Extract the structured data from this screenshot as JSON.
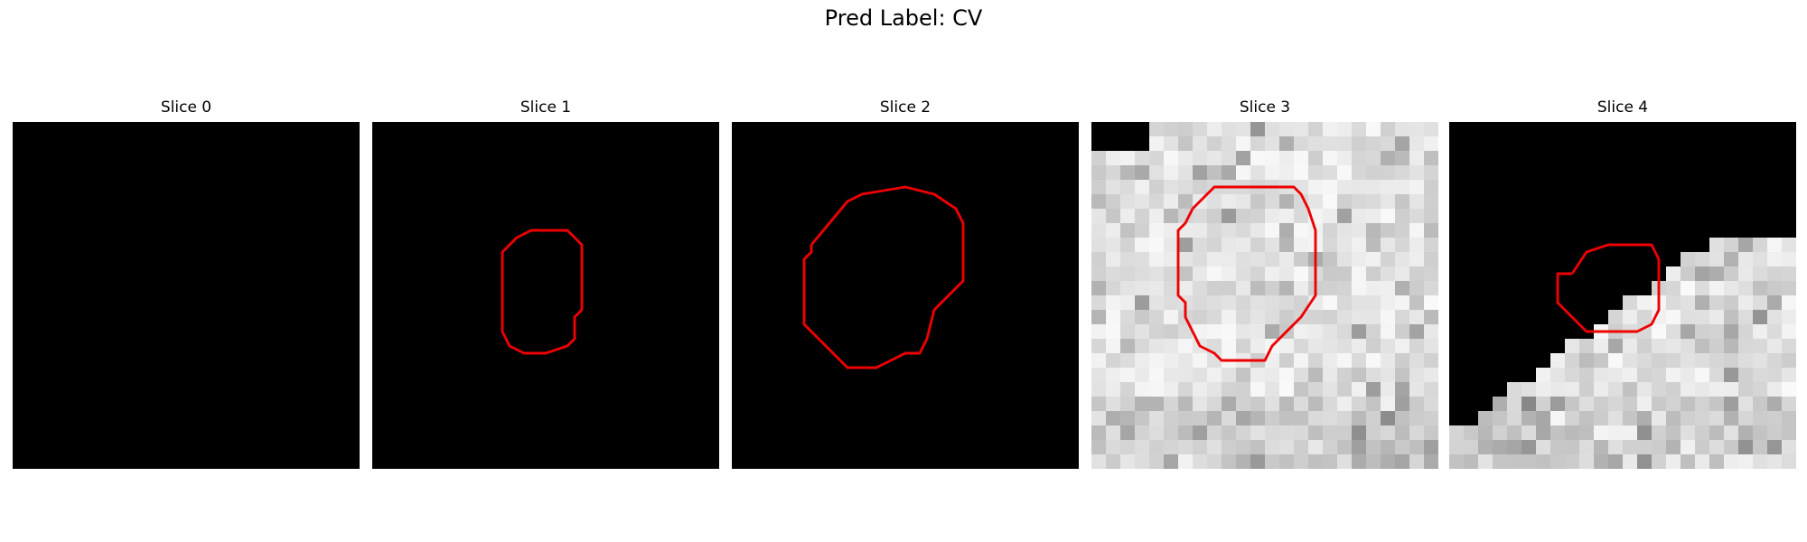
{
  "figure": {
    "title": "Pred Label: CV",
    "contour_color": "#ee0000",
    "panels": [
      {
        "title": "Slice 0",
        "background": "black",
        "contour": []
      },
      {
        "title": "Slice 1",
        "background": "black",
        "contour": [
          [
            10.0,
            8.0
          ],
          [
            11.0,
            7.5
          ],
          [
            13.5,
            7.5
          ],
          [
            14.0,
            8.0
          ],
          [
            14.5,
            8.5
          ],
          [
            14.5,
            13.0
          ],
          [
            14.0,
            13.5
          ],
          [
            14.0,
            15.0
          ],
          [
            13.5,
            15.5
          ],
          [
            12.0,
            16.0
          ],
          [
            10.5,
            16.0
          ],
          [
            9.5,
            15.5
          ],
          [
            9.0,
            14.5
          ],
          [
            9.0,
            9.0
          ]
        ]
      },
      {
        "title": "Slice 2",
        "background": "black",
        "contour": [
          [
            5.5,
            8.5
          ],
          [
            8.0,
            5.5
          ],
          [
            9.0,
            5.0
          ],
          [
            12.0,
            4.5
          ],
          [
            14.0,
            5.0
          ],
          [
            15.5,
            6.0
          ],
          [
            16.0,
            7.0
          ],
          [
            16.0,
            11.0
          ],
          [
            14.0,
            13.0
          ],
          [
            13.5,
            15.0
          ],
          [
            13.0,
            16.0
          ],
          [
            12.0,
            16.0
          ],
          [
            11.0,
            16.5
          ],
          [
            10.0,
            17.0
          ],
          [
            8.0,
            17.0
          ],
          [
            6.0,
            15.0
          ],
          [
            5.0,
            14.0
          ],
          [
            5.0,
            9.5
          ],
          [
            5.5,
            9.0
          ]
        ]
      },
      {
        "title": "Slice 3",
        "background": "gray-texture",
        "contour": [
          [
            7.0,
            6.0
          ],
          [
            8.0,
            5.0
          ],
          [
            8.5,
            4.5
          ],
          [
            11.0,
            4.5
          ],
          [
            14.0,
            4.5
          ],
          [
            14.5,
            5.0
          ],
          [
            15.0,
            6.0
          ],
          [
            15.5,
            7.5
          ],
          [
            15.5,
            12.0
          ],
          [
            14.5,
            13.5
          ],
          [
            13.5,
            14.5
          ],
          [
            12.5,
            15.5
          ],
          [
            12.0,
            16.5
          ],
          [
            10.0,
            16.5
          ],
          [
            9.0,
            16.5
          ],
          [
            8.5,
            16.0
          ],
          [
            7.5,
            15.5
          ],
          [
            7.0,
            14.5
          ],
          [
            6.5,
            13.5
          ],
          [
            6.5,
            12.5
          ],
          [
            6.0,
            12.0
          ],
          [
            6.0,
            7.5
          ],
          [
            6.5,
            7.0
          ]
        ]
      },
      {
        "title": "Slice 4",
        "background": "gray-texture-corner",
        "contour": [
          [
            8.5,
            10.5
          ],
          [
            9.5,
            9.0
          ],
          [
            11.0,
            8.5
          ],
          [
            13.0,
            8.5
          ],
          [
            14.0,
            8.5
          ],
          [
            14.5,
            9.5
          ],
          [
            14.5,
            13.0
          ],
          [
            14.0,
            14.0
          ],
          [
            13.0,
            14.5
          ],
          [
            11.5,
            14.5
          ],
          [
            9.5,
            14.5
          ],
          [
            8.5,
            13.5
          ],
          [
            7.5,
            12.5
          ],
          [
            7.5,
            10.5
          ]
        ]
      }
    ]
  }
}
